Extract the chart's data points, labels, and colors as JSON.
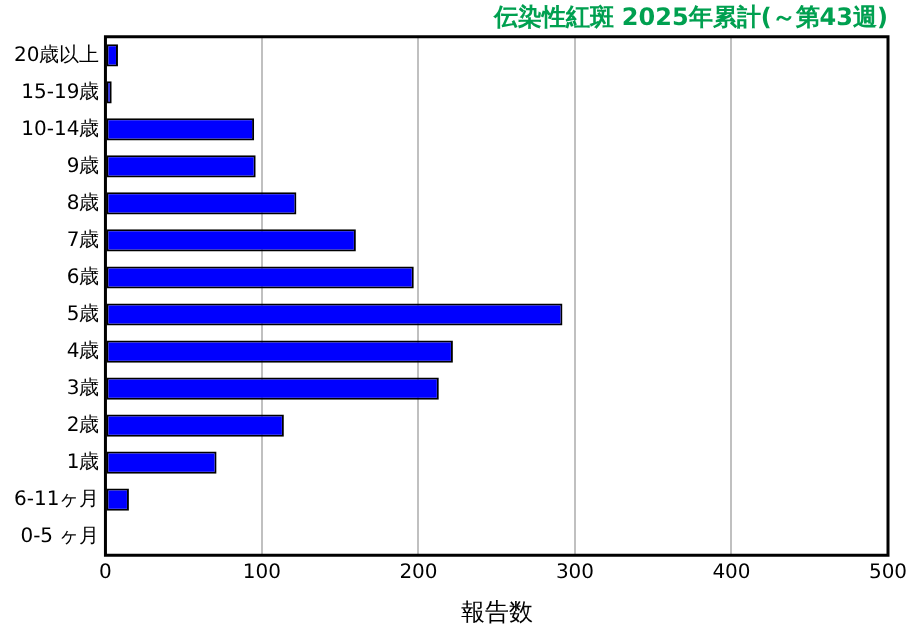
{
  "chart_data": {
    "type": "bar",
    "orientation": "horizontal",
    "title": "伝染性紅斑 2025年累計(～第43週)",
    "xlabel": "報告数",
    "categories": [
      "20歳以上",
      "15-19歳",
      "10-14歳",
      "9歳",
      "8歳",
      "7歳",
      "6歳",
      "5歳",
      "4歳",
      "3歳",
      "2歳",
      "1歳",
      "6-11ヶ月",
      "0-5 ヶ月"
    ],
    "values": [
      8,
      4,
      95,
      96,
      122,
      160,
      197,
      292,
      222,
      213,
      114,
      71,
      15,
      0
    ],
    "color": "#0000ff",
    "xlim": [
      0,
      500
    ],
    "xticks": [
      0,
      100,
      200,
      300,
      400,
      500
    ],
    "grid": "x",
    "legend": false
  }
}
